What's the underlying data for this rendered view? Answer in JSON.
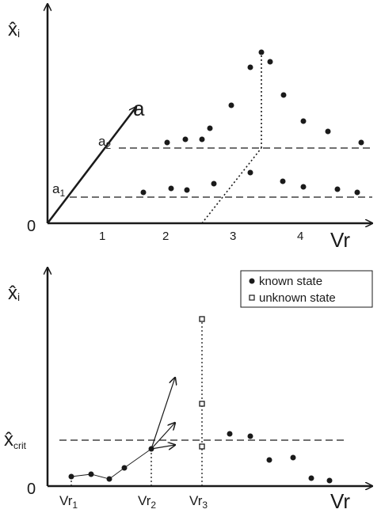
{
  "top_panel": {
    "y_axis_label": "x̂",
    "y_axis_subscript": "i",
    "x_axis_label": "Vr",
    "diag_axis_label": "a",
    "origin_label": "0",
    "x_ticks": [
      "1",
      "2",
      "3",
      "4"
    ],
    "levels": [
      {
        "label": "a",
        "subscript": "1"
      },
      {
        "label": "a",
        "subscript": "2"
      }
    ]
  },
  "bottom_panel": {
    "y_axis_label": "x̂",
    "y_axis_subscript": "i",
    "x_axis_label": "Vr",
    "origin_label": "0",
    "critical_label": "x̂",
    "critical_subscript": "crit",
    "x_ticks": [
      {
        "label": "Vr",
        "subscript": "1"
      },
      {
        "label": "Vr",
        "subscript": "2"
      },
      {
        "label": "Vr",
        "subscript": "3"
      }
    ],
    "legend": [
      {
        "marker": "filled-circle",
        "label": "known state"
      },
      {
        "marker": "open-square",
        "label": "unknown state"
      }
    ]
  }
}
